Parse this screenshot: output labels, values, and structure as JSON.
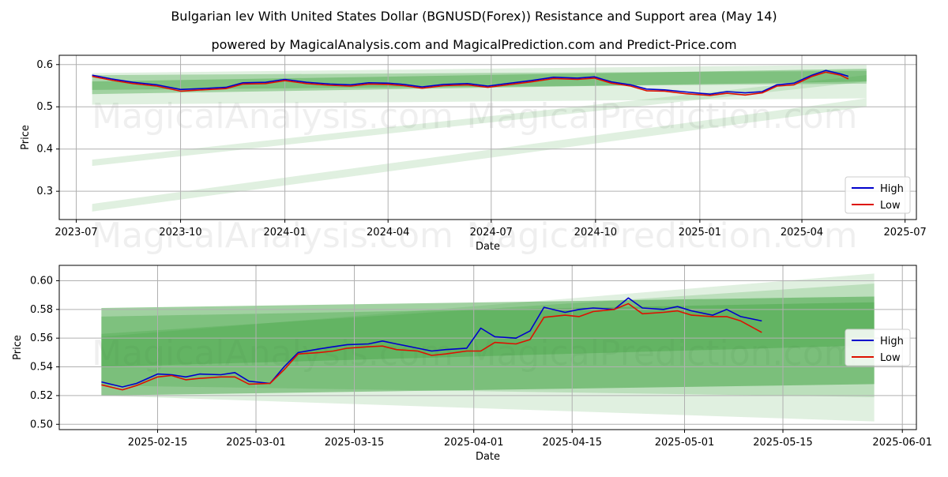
{
  "title": "Bulgarian lev With United States Dollar (BGNUSD(Forex)) Resistance and Support area (May 14)",
  "subtitle": "powered by MagicalAnalysis.com and MagicalPrediction.com and Predict-Price.com",
  "watermarks": [
    "MagicalAnalysis.com",
    "MagicalPrediction.com"
  ],
  "colors": {
    "high": "#0000cc",
    "low": "#dd1100",
    "band": "#2e9a2e",
    "grid": "#b0b0b0"
  },
  "chart_data": [
    {
      "type": "line",
      "xlabel": "Date",
      "ylabel": "Price",
      "xlim": [
        "2023-06-16",
        "2025-07-11"
      ],
      "ylim": [
        0.233,
        0.622
      ],
      "grid": true,
      "legend_position": "lower-right",
      "x_ticks": [
        "2023-07",
        "2023-10",
        "2024-01",
        "2024-04",
        "2024-07",
        "2024-10",
        "2025-01",
        "2025-04",
        "2025-07"
      ],
      "y_ticks": [
        0.3,
        0.4,
        0.5,
        0.6
      ],
      "series": [
        {
          "name": "High",
          "color": "#0000cc",
          "x": [
            "2023-07-15",
            "2023-08-01",
            "2023-08-20",
            "2023-09-10",
            "2023-10-01",
            "2023-10-20",
            "2023-11-10",
            "2023-11-25",
            "2023-12-15",
            "2024-01-01",
            "2024-01-20",
            "2024-02-10",
            "2024-02-28",
            "2024-03-15",
            "2024-04-01",
            "2024-04-15",
            "2024-05-01",
            "2024-05-20",
            "2024-06-10",
            "2024-06-28",
            "2024-07-15",
            "2024-08-05",
            "2024-08-25",
            "2024-09-15",
            "2024-09-30",
            "2024-10-15",
            "2024-11-01",
            "2024-11-15",
            "2024-12-01",
            "2024-12-20",
            "2025-01-10",
            "2025-01-25",
            "2025-02-10",
            "2025-02-25",
            "2025-03-10",
            "2025-03-25",
            "2025-04-10",
            "2025-04-22",
            "2025-05-05",
            "2025-05-12"
          ],
          "values": [
            0.575,
            0.566,
            0.558,
            0.552,
            0.541,
            0.543,
            0.546,
            0.557,
            0.558,
            0.565,
            0.558,
            0.554,
            0.552,
            0.557,
            0.556,
            0.553,
            0.547,
            0.553,
            0.555,
            0.549,
            0.555,
            0.562,
            0.57,
            0.568,
            0.571,
            0.559,
            0.552,
            0.542,
            0.54,
            0.535,
            0.53,
            0.536,
            0.533,
            0.536,
            0.552,
            0.556,
            0.575,
            0.586,
            0.578,
            0.572
          ]
        },
        {
          "name": "Low",
          "color": "#dd1100",
          "x": [
            "2023-07-15",
            "2023-08-01",
            "2023-08-20",
            "2023-09-10",
            "2023-10-01",
            "2023-10-20",
            "2023-11-10",
            "2023-11-25",
            "2023-12-15",
            "2024-01-01",
            "2024-01-20",
            "2024-02-10",
            "2024-02-28",
            "2024-03-15",
            "2024-04-01",
            "2024-04-15",
            "2024-05-01",
            "2024-05-20",
            "2024-06-10",
            "2024-06-28",
            "2024-07-15",
            "2024-08-05",
            "2024-08-25",
            "2024-09-15",
            "2024-09-30",
            "2024-10-15",
            "2024-11-01",
            "2024-11-15",
            "2024-12-01",
            "2024-12-20",
            "2025-01-10",
            "2025-01-25",
            "2025-02-10",
            "2025-02-25",
            "2025-03-10",
            "2025-03-25",
            "2025-04-10",
            "2025-04-22",
            "2025-05-05",
            "2025-05-12"
          ],
          "values": [
            0.572,
            0.563,
            0.555,
            0.549,
            0.537,
            0.54,
            0.543,
            0.554,
            0.555,
            0.562,
            0.555,
            0.551,
            0.549,
            0.554,
            0.553,
            0.55,
            0.544,
            0.55,
            0.552,
            0.546,
            0.552,
            0.559,
            0.567,
            0.565,
            0.568,
            0.556,
            0.549,
            0.538,
            0.537,
            0.531,
            0.527,
            0.532,
            0.528,
            0.533,
            0.549,
            0.552,
            0.572,
            0.582,
            0.575,
            0.566
          ]
        }
      ],
      "bands": [
        {
          "x": [
            "2023-07-15",
            "2025-05-28"
          ],
          "lower": [
            0.53,
            0.56
          ],
          "upper": [
            0.56,
            0.59
          ],
          "opacity": 0.35
        },
        {
          "x": [
            "2023-07-15",
            "2025-05-28"
          ],
          "lower": [
            0.54,
            0.555
          ],
          "upper": [
            0.575,
            0.585
          ],
          "opacity": 0.3
        },
        {
          "x": [
            "2023-07-15",
            "2025-05-28"
          ],
          "lower": [
            0.505,
            0.52
          ],
          "upper": [
            0.58,
            0.6
          ],
          "opacity": 0.15
        },
        {
          "x": [
            "2023-07-15",
            "2025-05-28"
          ],
          "lower": [
            0.36,
            0.56
          ],
          "upper": [
            0.375,
            0.575
          ],
          "opacity": 0.15
        },
        {
          "x": [
            "2023-07-15",
            "2025-05-28"
          ],
          "lower": [
            0.252,
            0.5
          ],
          "upper": [
            0.27,
            0.52
          ],
          "opacity": 0.15
        }
      ]
    },
    {
      "type": "line",
      "xlabel": "Date",
      "ylabel": "Price",
      "xlim": [
        "2025-02-01",
        "2025-06-03"
      ],
      "ylim": [
        0.4963,
        0.6107
      ],
      "grid": true,
      "legend_position": "center-right",
      "x_ticks": [
        "2025-02-15",
        "2025-03-01",
        "2025-03-15",
        "2025-04-01",
        "2025-04-15",
        "2025-05-01",
        "2025-05-15",
        "2025-06-01"
      ],
      "y_ticks": [
        0.5,
        0.52,
        0.54,
        0.56,
        0.58,
        0.6
      ],
      "y_tick_labels": [
        "0.50",
        "0.52",
        "0.54",
        "0.56",
        "0.58",
        "0.60"
      ],
      "series": [
        {
          "name": "High",
          "color": "#0000cc",
          "x": [
            "2025-02-07",
            "2025-02-10",
            "2025-02-12",
            "2025-02-15",
            "2025-02-17",
            "2025-02-19",
            "2025-02-21",
            "2025-02-24",
            "2025-02-26",
            "2025-02-28",
            "2025-03-03",
            "2025-03-05",
            "2025-03-07",
            "2025-03-10",
            "2025-03-12",
            "2025-03-14",
            "2025-03-17",
            "2025-03-19",
            "2025-03-21",
            "2025-03-24",
            "2025-03-26",
            "2025-03-28",
            "2025-03-31",
            "2025-04-02",
            "2025-04-04",
            "2025-04-07",
            "2025-04-09",
            "2025-04-11",
            "2025-04-14",
            "2025-04-16",
            "2025-04-18",
            "2025-04-21",
            "2025-04-23",
            "2025-04-25",
            "2025-04-28",
            "2025-04-30",
            "2025-05-02",
            "2025-05-05",
            "2025-05-07",
            "2025-05-09",
            "2025-05-12"
          ],
          "values": [
            0.5295,
            0.526,
            0.5285,
            0.535,
            0.5345,
            0.533,
            0.535,
            0.5345,
            0.536,
            0.53,
            0.5285,
            0.54,
            0.55,
            0.5525,
            0.554,
            0.5555,
            0.556,
            0.558,
            0.556,
            0.553,
            0.551,
            0.552,
            0.553,
            0.567,
            0.561,
            0.56,
            0.565,
            0.5815,
            0.578,
            0.58,
            0.581,
            0.58,
            0.588,
            0.581,
            0.58,
            0.582,
            0.579,
            0.576,
            0.58,
            0.575,
            0.572
          ]
        },
        {
          "name": "Low",
          "color": "#dd1100",
          "x": [
            "2025-02-07",
            "2025-02-10",
            "2025-02-12",
            "2025-02-15",
            "2025-02-17",
            "2025-02-19",
            "2025-02-21",
            "2025-02-24",
            "2025-02-26",
            "2025-02-28",
            "2025-03-03",
            "2025-03-05",
            "2025-03-07",
            "2025-03-10",
            "2025-03-12",
            "2025-03-14",
            "2025-03-17",
            "2025-03-19",
            "2025-03-21",
            "2025-03-24",
            "2025-03-26",
            "2025-03-28",
            "2025-03-31",
            "2025-04-02",
            "2025-04-04",
            "2025-04-07",
            "2025-04-09",
            "2025-04-11",
            "2025-04-14",
            "2025-04-16",
            "2025-04-18",
            "2025-04-21",
            "2025-04-23",
            "2025-04-25",
            "2025-04-28",
            "2025-04-30",
            "2025-05-02",
            "2025-05-05",
            "2025-05-07",
            "2025-05-09",
            "2025-05-12"
          ],
          "values": [
            0.5275,
            0.524,
            0.527,
            0.533,
            0.534,
            0.531,
            0.532,
            0.533,
            0.533,
            0.528,
            0.5285,
            0.538,
            0.549,
            0.55,
            0.551,
            0.553,
            0.554,
            0.5545,
            0.552,
            0.551,
            0.548,
            0.549,
            0.551,
            0.551,
            0.557,
            0.556,
            0.559,
            0.5745,
            0.576,
            0.575,
            0.5785,
            0.58,
            0.584,
            0.577,
            0.578,
            0.579,
            0.576,
            0.575,
            0.575,
            0.572,
            0.564
          ]
        }
      ],
      "bands": [
        {
          "x": [
            "2025-02-07",
            "2025-05-28"
          ],
          "lower": [
            0.52,
            0.528
          ],
          "upper": [
            0.581,
            0.589
          ],
          "opacity": 0.45
        },
        {
          "x": [
            "2025-02-07",
            "2025-05-28"
          ],
          "lower": [
            0.54,
            0.555
          ],
          "upper": [
            0.575,
            0.585
          ],
          "opacity": 0.3
        },
        {
          "x": [
            "2025-02-07",
            "2025-05-28"
          ],
          "lower": [
            0.527,
            0.519
          ],
          "upper": [
            0.563,
            0.598
          ],
          "opacity": 0.2
        },
        {
          "x": [
            "2025-02-07",
            "2025-05-28"
          ],
          "lower": [
            0.52,
            0.502
          ],
          "upper": [
            0.561,
            0.605
          ],
          "opacity": 0.15
        }
      ]
    }
  ]
}
